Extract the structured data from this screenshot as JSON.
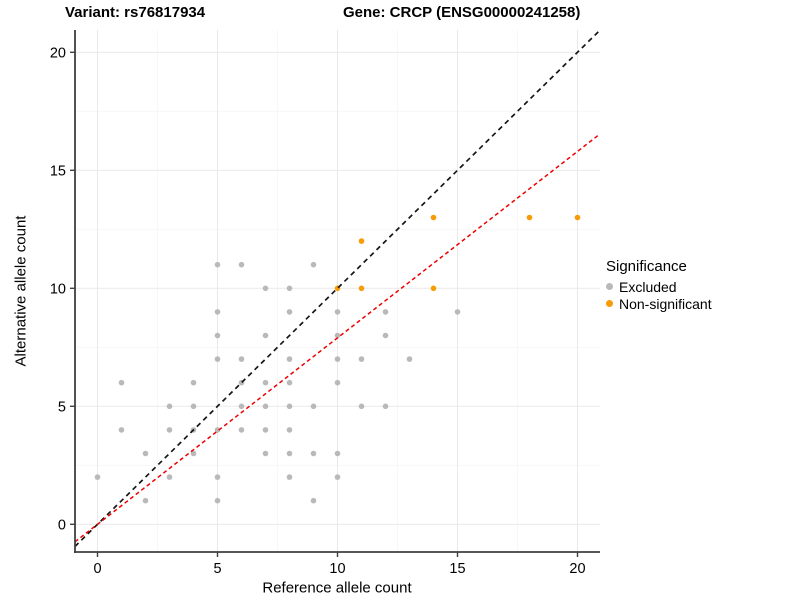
{
  "titles": {
    "variant": "Variant: rs76817934",
    "gene": "Gene: CRCP (ENSG00000241258)"
  },
  "legend": {
    "title": "Significance",
    "items": [
      {
        "label": "Excluded",
        "color": "#B9B9B9"
      },
      {
        "label": "Non-significant",
        "color": "#F89C06"
      }
    ]
  },
  "colors": {
    "point_excluded": "#B9B9B9",
    "point_nonsignificant": "#F89C06",
    "line_identity": "#161616",
    "line_fit": "#EE0000",
    "grid_major": "#E9E9E9",
    "grid_minor": "#F5F5F5",
    "axis_line": "#3F3F3F",
    "text": "#000000",
    "panel_background": "#FFFFFF"
  },
  "chart_data": {
    "type": "scatter",
    "title": "Variant: rs76817934 / Gene: CRCP (ENSG00000241258)",
    "xlabel": "Reference allele count",
    "ylabel": "Alternative allele count",
    "xlim": [
      -0.94,
      20.94
    ],
    "ylim": [
      -1.17,
      20.94
    ],
    "x_ticks": [
      0,
      5,
      10,
      15,
      20
    ],
    "y_ticks": [
      0,
      5,
      10,
      15,
      20
    ],
    "x_minor_ticks": [
      2.5,
      7.5,
      12.5,
      17.5
    ],
    "y_minor_ticks": [
      2.5,
      7.5,
      12.5,
      17.5
    ],
    "grid": true,
    "legend_position": "right",
    "series": [
      {
        "name": "Excluded",
        "color": "#B9B9B9",
        "points": [
          [
            2,
            1
          ],
          [
            5,
            1
          ],
          [
            9,
            1
          ],
          [
            0,
            2
          ],
          [
            3,
            2
          ],
          [
            5,
            2
          ],
          [
            8,
            2
          ],
          [
            10,
            2
          ],
          [
            2,
            3
          ],
          [
            4,
            3
          ],
          [
            7,
            3
          ],
          [
            8,
            3
          ],
          [
            9,
            3
          ],
          [
            10,
            3
          ],
          [
            1,
            4
          ],
          [
            3,
            4
          ],
          [
            4,
            4
          ],
          [
            5,
            4
          ],
          [
            6,
            4
          ],
          [
            7,
            4
          ],
          [
            8,
            4
          ],
          [
            3,
            5
          ],
          [
            4,
            5
          ],
          [
            6,
            5
          ],
          [
            7,
            5
          ],
          [
            8,
            5
          ],
          [
            9,
            5
          ],
          [
            11,
            5
          ],
          [
            12,
            5
          ],
          [
            1,
            6
          ],
          [
            4,
            6
          ],
          [
            6,
            6
          ],
          [
            7,
            6
          ],
          [
            8,
            6
          ],
          [
            10,
            6
          ],
          [
            5,
            7
          ],
          [
            6,
            7
          ],
          [
            8,
            7
          ],
          [
            10,
            7
          ],
          [
            11,
            7
          ],
          [
            13,
            7
          ],
          [
            5,
            8
          ],
          [
            7,
            8
          ],
          [
            10,
            8
          ],
          [
            12,
            8
          ],
          [
            5,
            9
          ],
          [
            8,
            9
          ],
          [
            10,
            9
          ],
          [
            12,
            9
          ],
          [
            15,
            9
          ],
          [
            7,
            10
          ],
          [
            8,
            10
          ],
          [
            5,
            11
          ],
          [
            6,
            11
          ],
          [
            9,
            11
          ]
        ]
      },
      {
        "name": "Non-significant",
        "color": "#F89C06",
        "points": [
          [
            10,
            10
          ],
          [
            11,
            10
          ],
          [
            14,
            10
          ],
          [
            11,
            12
          ],
          [
            14,
            13
          ],
          [
            18,
            13
          ],
          [
            20,
            13
          ]
        ]
      }
    ],
    "lines": [
      {
        "name": "identity",
        "style": "dashed",
        "color": "#161616",
        "slope": 1,
        "intercept": 0
      },
      {
        "name": "fit",
        "style": "dashed",
        "color": "#EE0000",
        "slope": 0.79,
        "intercept": 0
      }
    ]
  }
}
